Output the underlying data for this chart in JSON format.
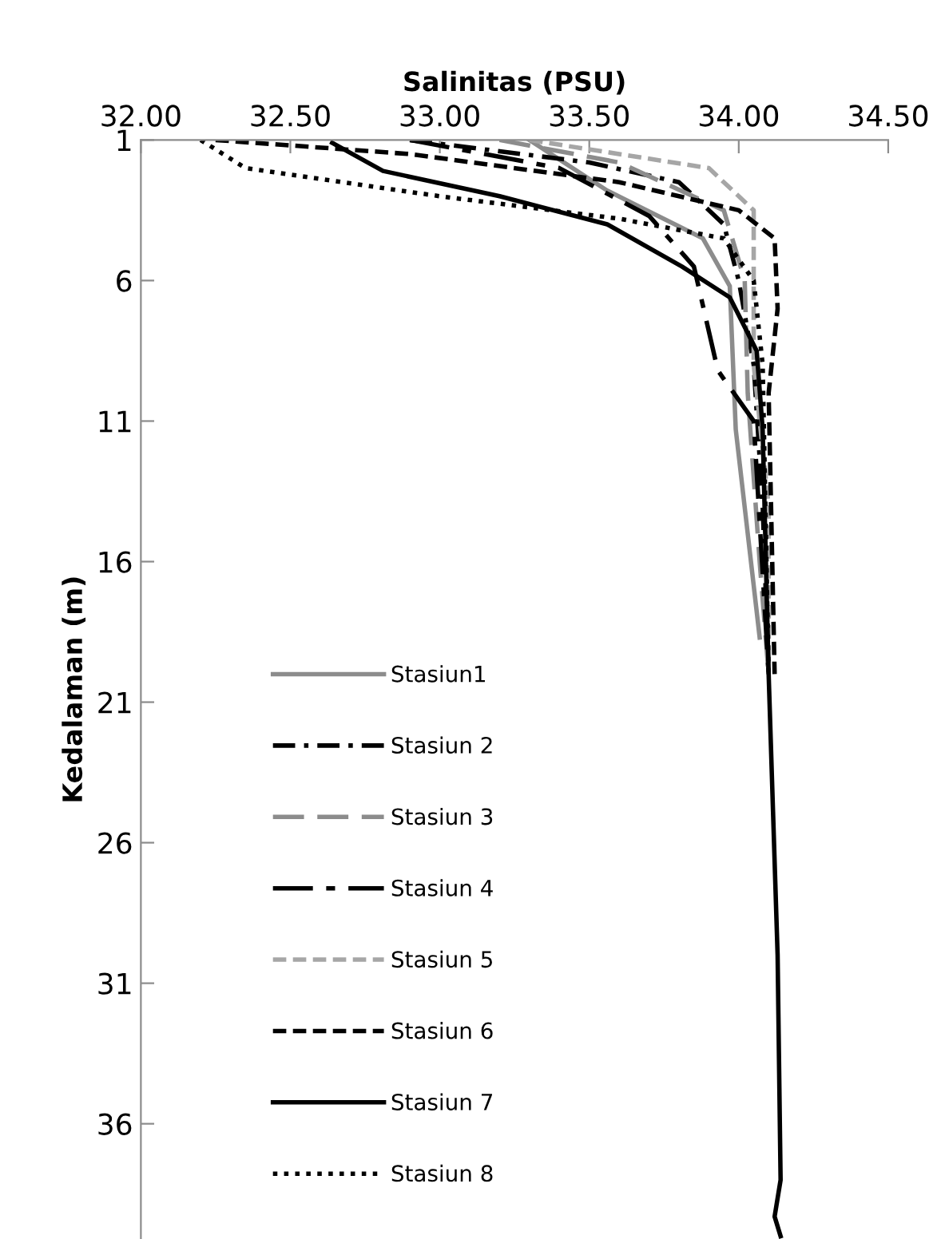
{
  "chart_data": {
    "type": "line",
    "xlabel": "Salinitas (PSU)",
    "ylabel": "Kedalaman (m)",
    "xlim": [
      32.0,
      34.5
    ],
    "xticks": [
      {
        "value": 32.0,
        "label": "32.00"
      },
      {
        "value": 32.5,
        "label": "32.50"
      },
      {
        "value": 33.0,
        "label": "33.00"
      },
      {
        "value": 33.5,
        "label": "33.50"
      },
      {
        "value": 34.0,
        "label": "34.00"
      },
      {
        "value": 34.5,
        "label": "34.50"
      }
    ],
    "ylim": [
      40.1,
      1
    ],
    "yticks": [
      1,
      6,
      11,
      16,
      21,
      26,
      31,
      36
    ],
    "grid": false,
    "legend": "bottom left",
    "marker": "none",
    "series": [
      {
        "name": "Stasiun1",
        "color": "#8c8c8c",
        "line_style": "solid",
        "x": [
          33.3,
          33.56,
          33.88,
          33.97,
          33.99,
          34.03,
          34.07
        ],
        "values": [
          1,
          2.8,
          4.5,
          6.2,
          11.3,
          15,
          18.7
        ]
      },
      {
        "name": "Stasiun 2",
        "color": "#000000",
        "line_style": "dashdot",
        "x": [
          32.9,
          33.5,
          33.8,
          33.95,
          34.0,
          34.05,
          34.08,
          34.1
        ],
        "values": [
          1,
          1.8,
          2.5,
          4,
          6,
          9,
          14,
          20
        ]
      },
      {
        "name": "Stasiun 3",
        "color": "#8c8c8c",
        "line_style": "longdash",
        "x": [
          33.2,
          33.6,
          33.95,
          34.02,
          34.03,
          34.07,
          34.1
        ],
        "values": [
          1,
          1.8,
          3.5,
          6,
          10,
          16,
          20
        ]
      },
      {
        "name": "Stasiun 4",
        "color": "#000000",
        "line_style": "longdashdot",
        "x": [
          32.9,
          33.4,
          33.7,
          33.85,
          33.93,
          34.05,
          34.1
        ],
        "values": [
          1,
          2,
          3.7,
          5.5,
          9.2,
          11,
          20
        ]
      },
      {
        "name": "Stasiun 5",
        "color": "#a6a6a6",
        "line_style": "dashed",
        "x": [
          33.3,
          33.9,
          34.05,
          34.05,
          34.05,
          34.1,
          34.1
        ],
        "values": [
          1,
          2,
          3.5,
          6,
          9,
          14,
          20
        ]
      },
      {
        "name": "Stasiun 6",
        "color": "#000000",
        "line_style": "dashed",
        "x": [
          32.25,
          32.9,
          33.6,
          34.0,
          34.12,
          34.13,
          34.1,
          34.12
        ],
        "values": [
          1,
          1.5,
          2.5,
          3.5,
          4.5,
          7,
          10,
          20
        ]
      },
      {
        "name": "Stasiun 7",
        "color": "#000000",
        "line_style": "solid",
        "x": [
          32.64,
          32.81,
          33.2,
          33.56,
          33.81,
          33.97,
          34.06,
          34.08,
          34.1,
          34.13,
          34.14,
          34.12,
          34.14
        ],
        "values": [
          1.1,
          2.1,
          3.0,
          4.0,
          5.5,
          6.6,
          8.5,
          11.3,
          20,
          30,
          38,
          39.3,
          40
        ]
      },
      {
        "name": "Stasiun 8",
        "color": "#000000",
        "line_style": "dotted",
        "x": [
          32.2,
          32.35,
          33.0,
          33.6,
          33.95,
          34.05,
          34.08,
          34.1
        ],
        "values": [
          1,
          2,
          3,
          3.8,
          4.5,
          6,
          9,
          20
        ]
      }
    ]
  }
}
